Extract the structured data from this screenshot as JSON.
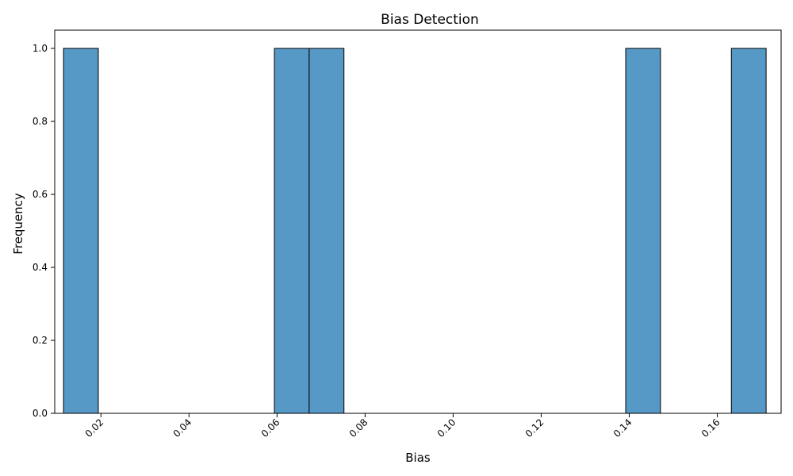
{
  "chart_data": {
    "type": "bar",
    "title": "Bias Detection",
    "xlabel": "Bias",
    "ylabel": "Frequency",
    "xlim": [
      0.0095,
      0.1745
    ],
    "ylim": [
      0,
      1.05
    ],
    "bin_width": 0.0079,
    "bins": [
      {
        "start": 0.0115,
        "end": 0.0194,
        "count": 1
      },
      {
        "start": 0.0594,
        "end": 0.0673,
        "count": 1
      },
      {
        "start": 0.0673,
        "end": 0.0752,
        "count": 1
      },
      {
        "start": 0.1392,
        "end": 0.1471,
        "count": 1
      },
      {
        "start": 0.1632,
        "end": 0.1711,
        "count": 1
      }
    ],
    "zero_bins_between": true,
    "x_ticks": [
      {
        "value": 0.02,
        "label": "0.02"
      },
      {
        "value": 0.04,
        "label": "0.04"
      },
      {
        "value": 0.06,
        "label": "0.06"
      },
      {
        "value": 0.08,
        "label": "0.08"
      },
      {
        "value": 0.1,
        "label": "0.10"
      },
      {
        "value": 0.12,
        "label": "0.12"
      },
      {
        "value": 0.14,
        "label": "0.14"
      },
      {
        "value": 0.16,
        "label": "0.16"
      }
    ],
    "y_ticks": [
      {
        "value": 0.0,
        "label": "0.0"
      },
      {
        "value": 0.2,
        "label": "0.2"
      },
      {
        "value": 0.4,
        "label": "0.4"
      },
      {
        "value": 0.6,
        "label": "0.6"
      },
      {
        "value": 0.8,
        "label": "0.8"
      },
      {
        "value": 1.0,
        "label": "1.0"
      }
    ],
    "grid": false,
    "bar_color": "#5699c6",
    "edge_color": "#000000"
  }
}
